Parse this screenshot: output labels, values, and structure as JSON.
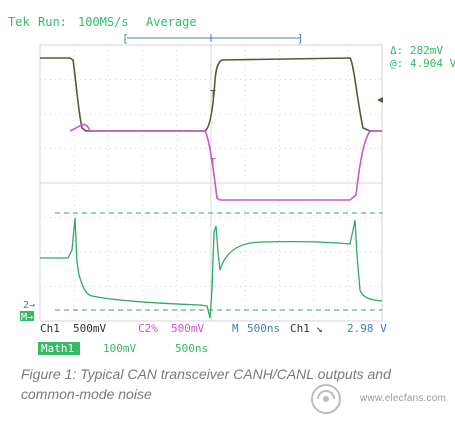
{
  "header": {
    "brand": "Tek",
    "run_label": "Run:",
    "sample_rate": "100MS/s",
    "mode": "Average"
  },
  "readouts": {
    "delta": "Δ: 282mV",
    "at": "@: 4.904 V"
  },
  "markers": {
    "ch2": "2→",
    "math": "M→",
    "trigger_t": "T",
    "cursor_t": "T"
  },
  "status_row1": {
    "ch1": "Ch1",
    "ch1_scale": "500mV",
    "ch2": "C2%",
    "ch2_scale": "500mV",
    "timebase_m": "M",
    "timebase": "500ns",
    "trig_source": "Ch1",
    "trig_slope": "↘",
    "trig_level": "2.98 V"
  },
  "status_row2": {
    "math_label": "Math1",
    "math_scale": "100mV",
    "math_time": "500ns"
  },
  "caption": "Figure 1: Typical CAN transceiver CANH/CANL outputs and common-mode noise",
  "watermark": {
    "text": "www.elecfans.com"
  },
  "colors": {
    "ch1": "#555a3c",
    "ch2": "#cc55d0",
    "math": "#2eaa66",
    "grid": "#d6d6d6",
    "text_green": "#33bb66",
    "text_blue": "#3f7fc0"
  }
}
